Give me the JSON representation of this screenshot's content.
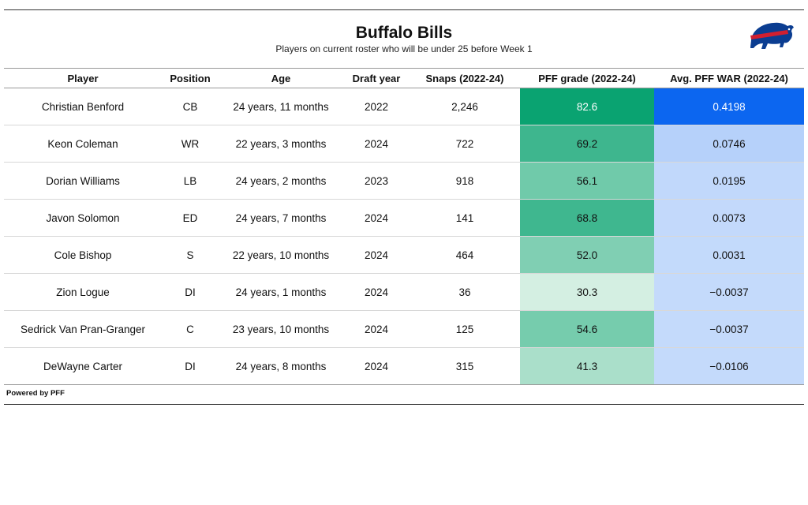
{
  "header": {
    "title": "Buffalo Bills",
    "subtitle": "Players on current roster who will be under 25 before Week 1",
    "logo_icon": "buffalo-bills-logo"
  },
  "footer": {
    "text": "Powered by PFF"
  },
  "colors": {
    "grade_scale_low": "#d4efe2",
    "grade_scale_high": "#0aa371",
    "war_scale_low": "#c4dafb",
    "war_scale_high": "#0c66f0"
  },
  "chart_data": {
    "type": "table",
    "columns": [
      "Player",
      "Position",
      "Age",
      "Draft year",
      "Snaps (2022-24)",
      "PFF grade (2022-24)",
      "Avg. PFF WAR (2022-24)"
    ],
    "rows": [
      [
        "Christian Benford",
        "CB",
        "24 years, 11 months",
        "2022",
        "2,246",
        "82.6",
        "0.4198"
      ],
      [
        "Keon Coleman",
        "WR",
        "22 years, 3 months",
        "2024",
        "722",
        "69.2",
        "0.0746"
      ],
      [
        "Dorian Williams",
        "LB",
        "24 years, 2 months",
        "2023",
        "918",
        "56.1",
        "0.0195"
      ],
      [
        "Javon Solomon",
        "ED",
        "24 years, 7 months",
        "2024",
        "141",
        "68.8",
        "0.0073"
      ],
      [
        "Cole Bishop",
        "S",
        "22 years, 10 months",
        "2024",
        "464",
        "52.0",
        "0.0031"
      ],
      [
        "Zion Logue",
        "DI",
        "24 years, 1 months",
        "2024",
        "36",
        "30.3",
        "−0.0037"
      ],
      [
        "Sedrick Van Pran-Granger",
        "C",
        "23 years, 10 months",
        "2024",
        "125",
        "54.6",
        "−0.0037"
      ],
      [
        "DeWayne Carter",
        "DI",
        "24 years, 8 months",
        "2024",
        "315",
        "41.3",
        "−0.0106"
      ]
    ]
  }
}
